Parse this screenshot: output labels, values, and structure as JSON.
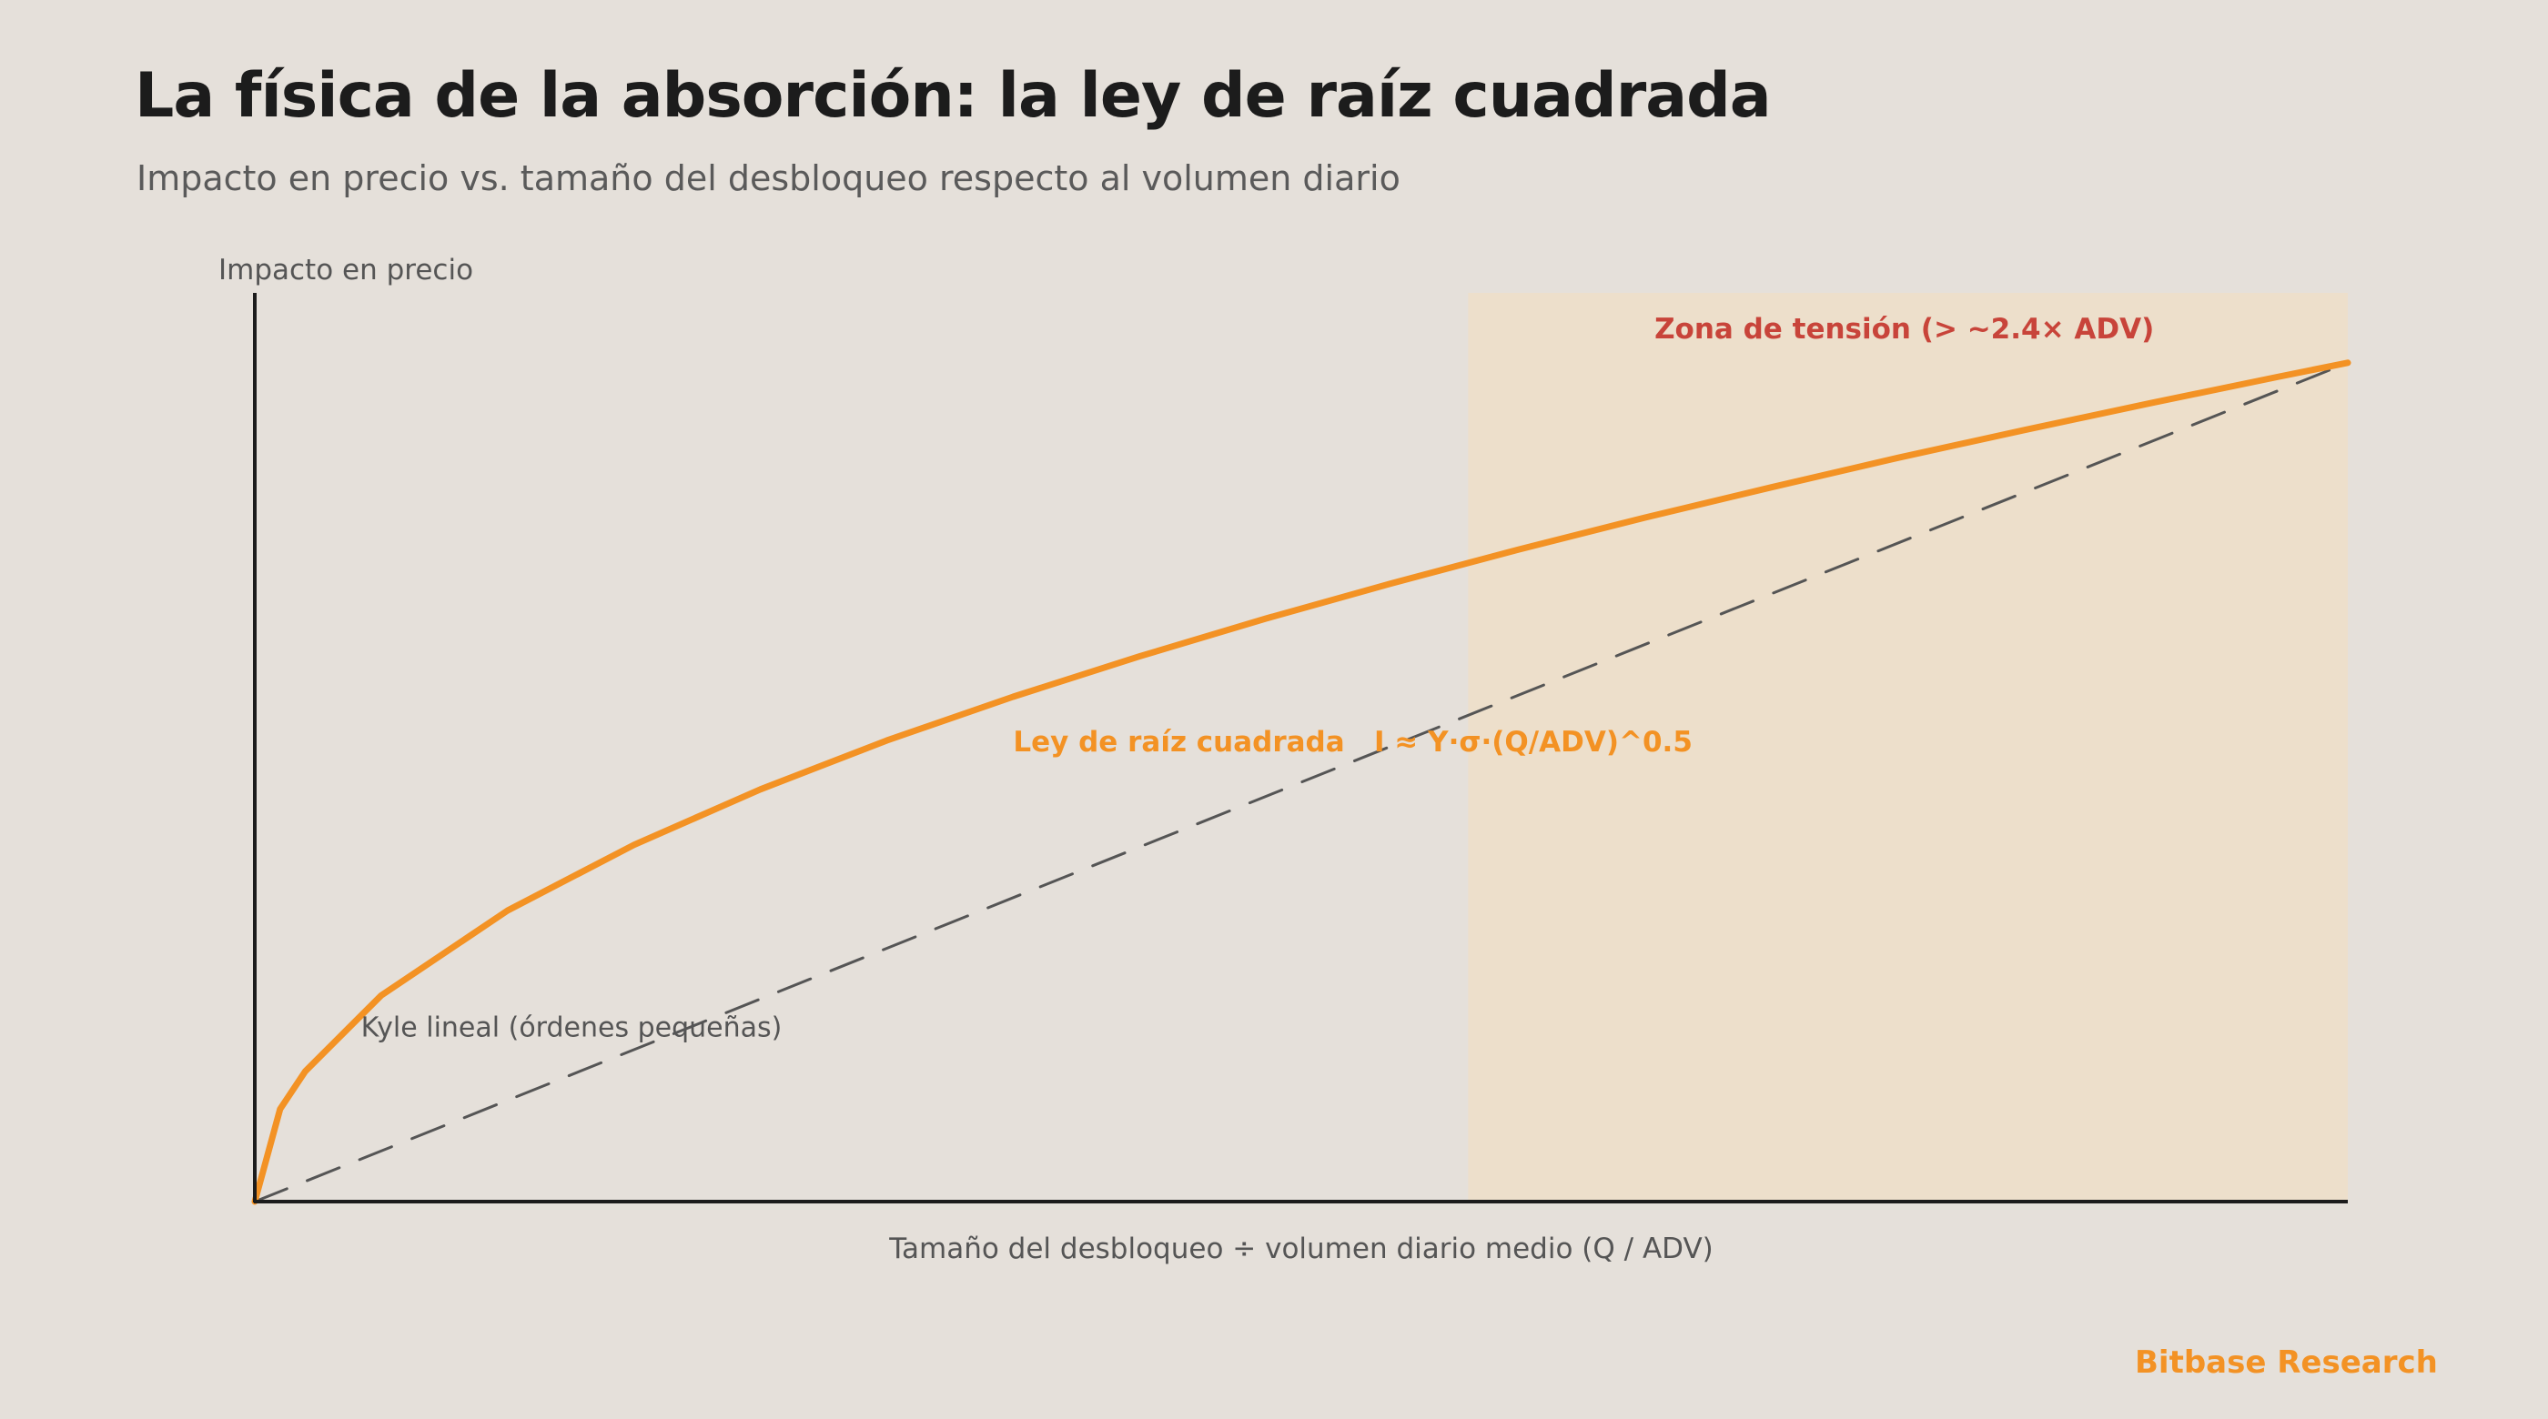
{
  "header": {
    "title": "La física de la absorción: la ley de raíz cuadrada",
    "subtitle": "Impacto en precio vs. tamaño del desbloqueo respecto al volumen diario"
  },
  "footer": {
    "brand": "Bitbase Research"
  },
  "colors": {
    "background": "#E5E0DA",
    "accent_orange": "#F39224",
    "zone_fill": "#EDDFCB",
    "zone_label": "#C8443A",
    "dashed_line": "#555555",
    "axis": "#1c1c1c"
  },
  "chart_data": {
    "type": "line",
    "title": "La física de la absorción: la ley de raíz cuadrada",
    "subtitle": "Impacto en precio vs. tamaño del desbloqueo respecto al volumen diario",
    "xlabel": "Tamaño del desbloqueo ÷ volumen diario medio (Q / ADV)",
    "ylabel": "Impacto en precio",
    "xlim": [
      0,
      4.14
    ],
    "ylim": [
      0,
      1.08
    ],
    "grid": false,
    "tick_labels_shown": false,
    "series": [
      {
        "name": "Ley de raíz cuadrada",
        "style": "solid",
        "color": "#F39224",
        "x": [
          0,
          0.05,
          0.1,
          0.25,
          0.5,
          0.75,
          1.0,
          1.25,
          1.5,
          1.75,
          2.0,
          2.25,
          2.5,
          2.75,
          3.0,
          3.25,
          3.5,
          3.75,
          4.0,
          4.14
        ],
        "y": [
          0,
          0.11,
          0.155,
          0.245,
          0.346,
          0.424,
          0.49,
          0.548,
          0.6,
          0.648,
          0.693,
          0.735,
          0.775,
          0.813,
          0.849,
          0.884,
          0.917,
          0.949,
          0.98,
          0.997
        ]
      },
      {
        "name": "Kyle lineal",
        "style": "dashed",
        "color": "#555555",
        "x": [
          0,
          4.14
        ],
        "y": [
          0,
          0.997
        ]
      }
    ],
    "shaded_regions": [
      {
        "x_start": 2.4,
        "x_end": 4.14,
        "label": "Zona de tensión (> ~2.4× ADV)"
      }
    ],
    "annotations": [
      {
        "text": "Ley de raíz cuadrada   I ≈ Y·σ·(Q/ADV)^0.5",
        "x": 1.5,
        "y": 0.535,
        "anchor": "start"
      },
      {
        "text": "Kyle lineal (órdenes pequeñas)",
        "x": 0.21,
        "y": 0.196,
        "anchor": "start"
      }
    ]
  }
}
